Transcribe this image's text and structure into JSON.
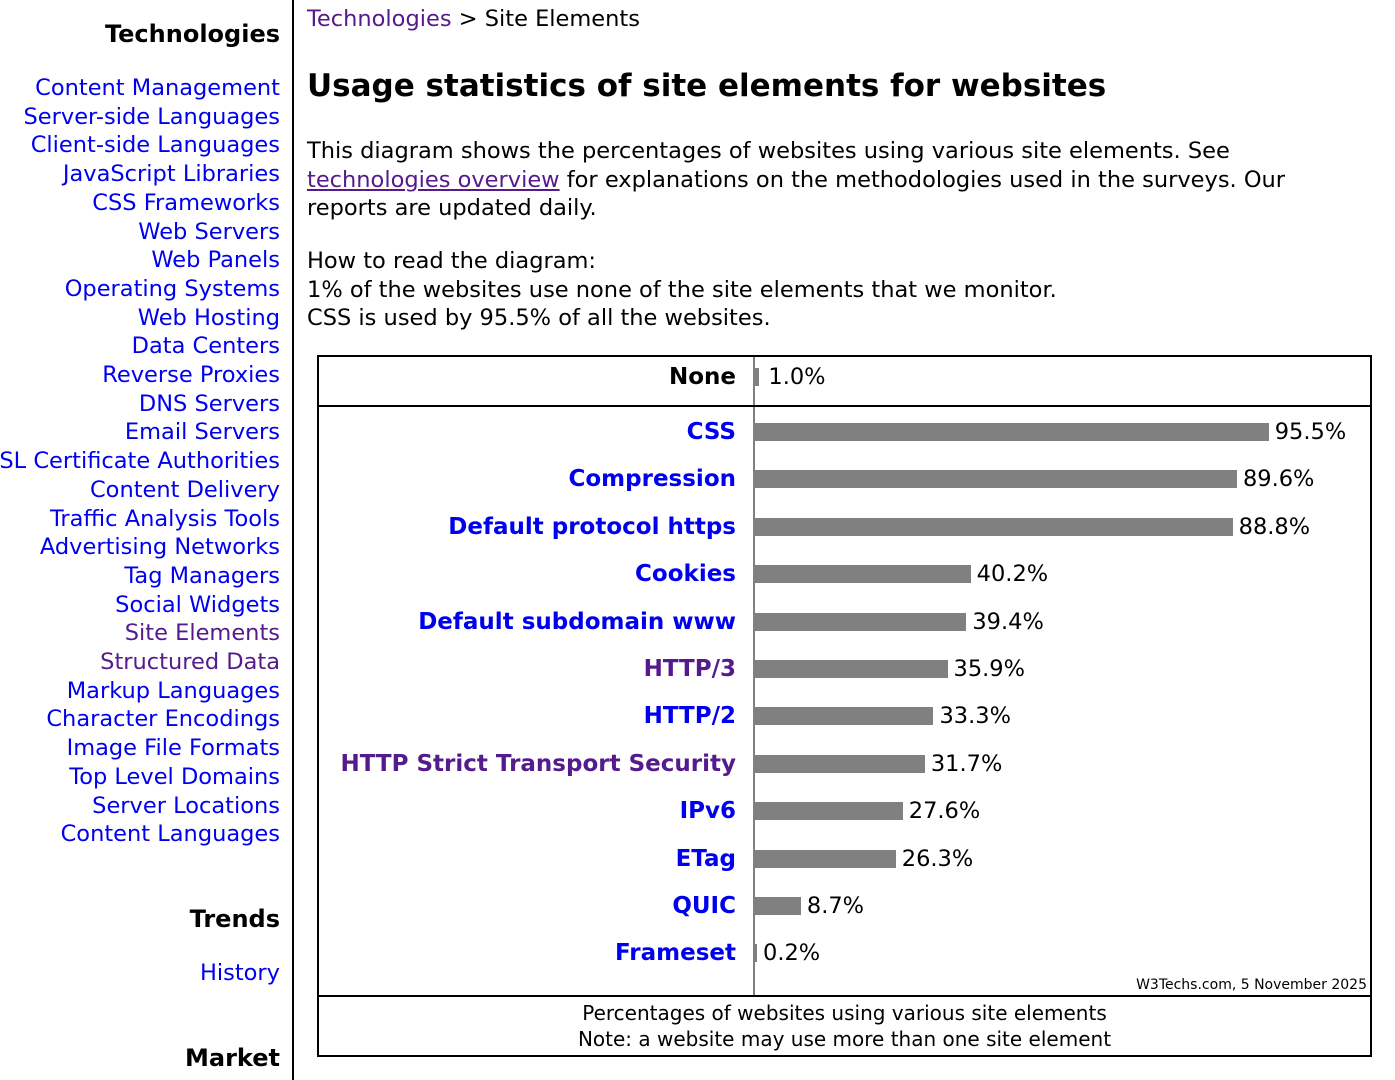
{
  "sidebar": {
    "technologies_heading": "Technologies",
    "items": [
      {
        "label": "Content Management",
        "visited": false
      },
      {
        "label": "Server-side Languages",
        "visited": false
      },
      {
        "label": "Client-side Languages",
        "visited": false
      },
      {
        "label": "JavaScript Libraries",
        "visited": false
      },
      {
        "label": "CSS Frameworks",
        "visited": false
      },
      {
        "label": "Web Servers",
        "visited": false
      },
      {
        "label": "Web Panels",
        "visited": false
      },
      {
        "label": "Operating Systems",
        "visited": false
      },
      {
        "label": "Web Hosting",
        "visited": false
      },
      {
        "label": "Data Centers",
        "visited": false
      },
      {
        "label": "Reverse Proxies",
        "visited": false
      },
      {
        "label": "DNS Servers",
        "visited": false
      },
      {
        "label": "Email Servers",
        "visited": false
      },
      {
        "label": "SSL Certificate Authorities",
        "visited": false
      },
      {
        "label": "Content Delivery",
        "visited": false
      },
      {
        "label": "Traffic Analysis Tools",
        "visited": false
      },
      {
        "label": "Advertising Networks",
        "visited": false
      },
      {
        "label": "Tag Managers",
        "visited": false
      },
      {
        "label": "Social Widgets",
        "visited": false
      },
      {
        "label": "Site Elements",
        "visited": true
      },
      {
        "label": "Structured Data",
        "visited": true
      },
      {
        "label": "Markup Languages",
        "visited": false
      },
      {
        "label": "Character Encodings",
        "visited": false
      },
      {
        "label": "Image File Formats",
        "visited": false
      },
      {
        "label": "Top Level Domains",
        "visited": false
      },
      {
        "label": "Server Locations",
        "visited": false
      },
      {
        "label": "Content Languages",
        "visited": false
      }
    ],
    "trends_heading": "Trends",
    "trends_items": [
      {
        "label": "History"
      }
    ],
    "market_heading": "Market"
  },
  "breadcrumb": {
    "parent": "Technologies",
    "separator": ">",
    "current": "Site Elements"
  },
  "page": {
    "title": "Usage statistics of site elements for websites",
    "intro_before_link": "This diagram shows the percentages of websites using various site elements. See ",
    "intro_link": "technologies overview",
    "intro_after_link": " for explanations on the methodologies used in the surveys. Our reports are updated daily.",
    "howto_heading": "How to read the diagram:",
    "howto_line1": "1% of the websites use none of the site elements that we monitor.",
    "howto_line2": "CSS is used by 95.5% of all the websites."
  },
  "colors": {
    "link": "#0000ee",
    "visited": "#551a8b",
    "bar": "#808080"
  },
  "chart_data": {
    "type": "bar",
    "orientation": "horizontal",
    "title": "Percentages of websites using various site elements",
    "subtitle": "Note: a website may use more than one site element",
    "credit": "W3Techs.com, 5 November 2025",
    "xlabel": "",
    "ylabel": "",
    "xlim": [
      0,
      100
    ],
    "grid": false,
    "legend": "none",
    "none_row": {
      "category": "None",
      "value": 1.0,
      "label": "1.0%"
    },
    "categories": [
      "CSS",
      "Compression",
      "Default protocol https",
      "Cookies",
      "Default subdomain www",
      "HTTP/3",
      "HTTP/2",
      "HTTP Strict Transport Security",
      "IPv6",
      "ETag",
      "QUIC",
      "Frameset"
    ],
    "values": [
      95.5,
      89.6,
      88.8,
      40.2,
      39.4,
      35.9,
      33.3,
      31.7,
      27.6,
      26.3,
      8.7,
      0.2
    ],
    "value_labels": [
      "95.5%",
      "89.6%",
      "88.8%",
      "40.2%",
      "39.4%",
      "35.9%",
      "33.3%",
      "31.7%",
      "27.6%",
      "26.3%",
      "8.7%",
      "0.2%"
    ],
    "visited": [
      false,
      false,
      false,
      false,
      false,
      true,
      false,
      true,
      false,
      false,
      false,
      false
    ]
  }
}
